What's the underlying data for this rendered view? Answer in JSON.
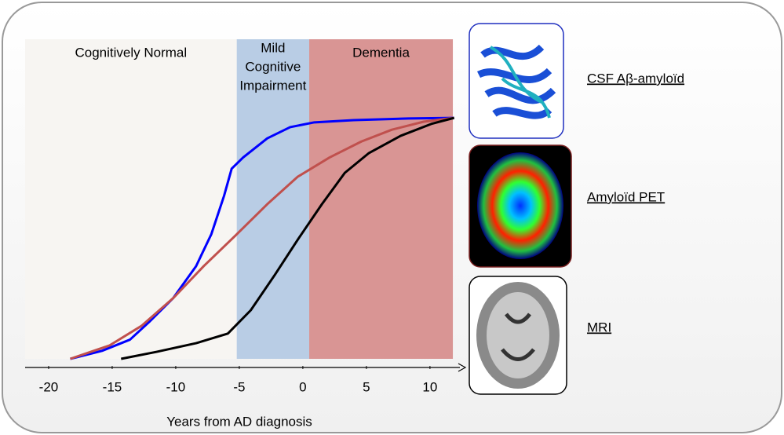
{
  "chart_data": {
    "type": "line",
    "x_label": "Years from AD diagnosis",
    "xlim": [
      -21.85,
      12.6
    ],
    "ylim": [
      0,
      100
    ],
    "xticks": [
      -20,
      -15,
      -10,
      -5,
      0,
      5,
      10
    ],
    "bands": [
      {
        "lines": [
          "Cognitively Normal"
        ],
        "from": -21.85,
        "to": -5.2,
        "color": "#f7f5f2"
      },
      {
        "lines": [
          "Mild",
          "Cognitive",
          "Impairment"
        ],
        "from": -5.2,
        "to": 0.5,
        "color": "#b9cde5"
      },
      {
        "lines": [
          "Dementia"
        ],
        "from": 0.5,
        "to": 11.8,
        "color": "#d99594"
      }
    ],
    "series": [
      {
        "name": "CSF Aβ-amyloïd",
        "color": "#0000ff",
        "x": [
          -18.3,
          -15.8,
          -13.6,
          -12.1,
          -10.2,
          -8.4,
          -7.2,
          -6.2,
          -5.6,
          -4.7,
          -2.8,
          -1.0,
          0.9,
          4.0,
          8.3,
          11.9
        ],
        "values": [
          0,
          2.5,
          6,
          11.5,
          19,
          29,
          39,
          51,
          59.5,
          63,
          69,
          72.5,
          74,
          74.7,
          75.2,
          75.4
        ]
      },
      {
        "name": "Amyloïd PET",
        "color": "#c0504d",
        "x": [
          -18.3,
          -15.2,
          -12.7,
          -10.2,
          -7.8,
          -5.3,
          -2.8,
          -0.4,
          2.1,
          4.6,
          7.0,
          9.5,
          11.9
        ],
        "values": [
          0,
          4.2,
          10.3,
          19,
          29,
          38.6,
          48.4,
          57,
          63,
          68,
          71.7,
          74.2,
          75.4
        ]
      },
      {
        "name": "MRI",
        "color": "#000000",
        "x": [
          -14.3,
          -11.5,
          -8.4,
          -5.9,
          -4.1,
          -2.2,
          -0.4,
          1.5,
          3.3,
          5.2,
          7.7,
          10.1,
          11.9
        ],
        "values": [
          0,
          2.2,
          4.9,
          7.9,
          15.2,
          26.3,
          37.3,
          48.4,
          58.2,
          64.4,
          69.8,
          73.5,
          75.4
        ]
      }
    ]
  }
}
